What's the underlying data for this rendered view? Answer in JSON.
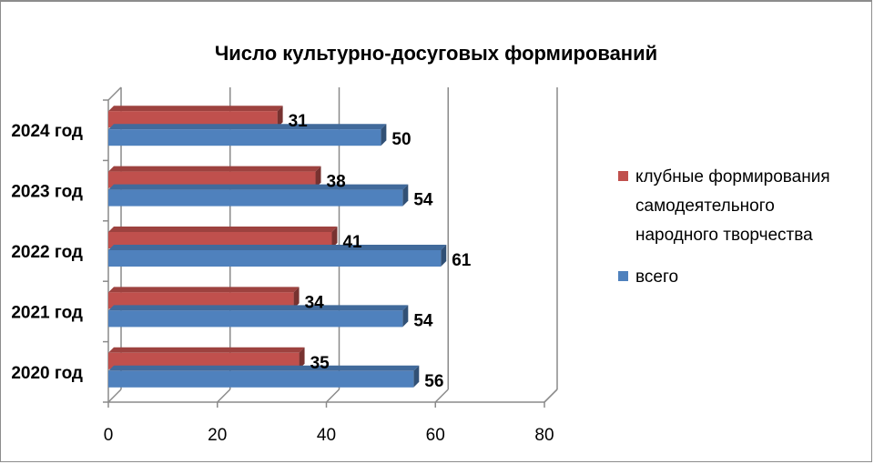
{
  "chart_data": {
    "type": "bar",
    "orientation": "horizontal",
    "style": "3d-clustered",
    "title": "Число культурно-досуговых формирований",
    "categories": [
      "2020 год",
      "2021 год",
      "2022 год",
      "2023 год",
      "2024 год"
    ],
    "series": [
      {
        "name": "клубные формирования самодеятельного народного творчества",
        "legend_lines": [
          "клубные формирования",
          "самодеятельного",
          "народного творчества"
        ],
        "color": "#c0504d",
        "values": [
          35,
          34,
          41,
          38,
          31
        ]
      },
      {
        "name": "всего",
        "legend_lines": [
          "всего"
        ],
        "color": "#4f81bd",
        "values": [
          56,
          54,
          61,
          54,
          50
        ]
      }
    ],
    "xlim": [
      0,
      80
    ],
    "ticks": [
      0,
      20,
      40,
      60,
      80
    ],
    "tick_labels": [
      "0",
      "20",
      "40",
      "60",
      "80"
    ],
    "gridlines": true,
    "legend_position": "right"
  }
}
